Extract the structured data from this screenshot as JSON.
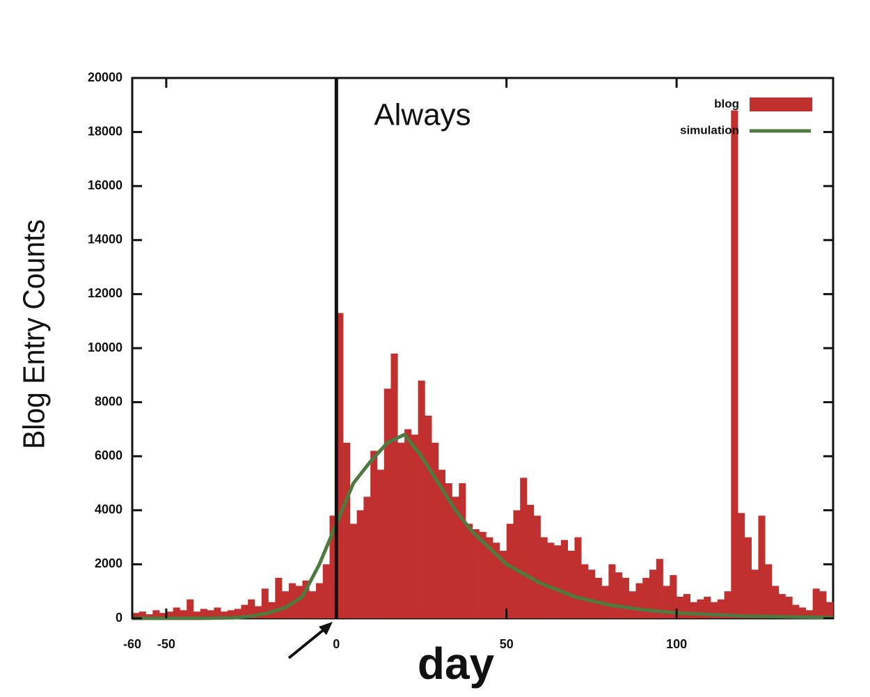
{
  "chart_data": {
    "type": "histogram",
    "title": "Always",
    "x_label": "day",
    "y_label": "Blog Entry Counts",
    "xlim": [
      -60,
      146
    ],
    "ylim": [
      0,
      20000
    ],
    "xticks": [
      -60,
      -50,
      0,
      50,
      100
    ],
    "yticks": [
      0,
      2000,
      4000,
      6000,
      8000,
      10000,
      12000,
      14000,
      16000,
      18000,
      20000
    ],
    "vline_x": 0,
    "legend": "top-right",
    "bins": [
      -60,
      -58,
      -56,
      -54,
      -52,
      -50,
      -48,
      -46,
      -44,
      -42,
      -40,
      -38,
      -36,
      -34,
      -32,
      -30,
      -28,
      -26,
      -24,
      -22,
      -20,
      -18,
      -16,
      -14,
      -12,
      -10,
      -8,
      -6,
      -4,
      -2,
      0,
      2,
      4,
      6,
      8,
      10,
      12,
      14,
      16,
      18,
      20,
      22,
      24,
      26,
      28,
      30,
      32,
      34,
      36,
      38,
      40,
      42,
      44,
      46,
      48,
      50,
      52,
      54,
      56,
      58,
      60,
      62,
      64,
      66,
      68,
      70,
      72,
      74,
      76,
      78,
      80,
      82,
      84,
      86,
      88,
      90,
      92,
      94,
      96,
      98,
      100,
      102,
      104,
      106,
      108,
      110,
      112,
      114,
      116,
      118,
      120,
      122,
      124,
      126,
      128,
      130,
      132,
      134,
      136,
      138,
      140,
      142,
      144,
      146
    ],
    "series": [
      {
        "name": "blog",
        "color": "#c0302f",
        "values": [
          200,
          250,
          150,
          300,
          200,
          250,
          400,
          300,
          700,
          250,
          350,
          300,
          400,
          250,
          300,
          350,
          500,
          700,
          450,
          1100,
          600,
          1500,
          1000,
          1300,
          1200,
          1400,
          1000,
          1300,
          2000,
          3800,
          11300,
          6500,
          3500,
          4000,
          4500,
          6200,
          5500,
          8500,
          9800,
          6500,
          7000,
          6800,
          8800,
          7500,
          6500,
          5500,
          5000,
          4500,
          5000,
          3500,
          3300,
          3200,
          3000,
          2800,
          2500,
          3500,
          4000,
          5200,
          4200,
          3800,
          3000,
          2800,
          2700,
          2900,
          2500,
          3000,
          2000,
          1800,
          1500,
          1200,
          2000,
          1700,
          1500,
          1000,
          1300,
          1500,
          1800,
          2200,
          1200,
          1600,
          800,
          900,
          600,
          700,
          800,
          600,
          700,
          1000,
          18800,
          3900,
          3000,
          1800,
          3800,
          2000,
          1200,
          900,
          800,
          500,
          400,
          300,
          1100,
          1000,
          600
        ]
      },
      {
        "name": "simulation",
        "color": "#4f7a3f",
        "x": [
          -60,
          -40,
          -30,
          -25,
          -20,
          -15,
          -10,
          -5,
          0,
          5,
          10,
          15,
          20,
          25,
          30,
          35,
          40,
          50,
          60,
          70,
          80,
          90,
          100,
          120,
          146
        ],
        "values": [
          0,
          0,
          20,
          80,
          200,
          400,
          800,
          2000,
          3500,
          5000,
          5800,
          6500,
          6800,
          6000,
          5000,
          4000,
          3200,
          2000,
          1300,
          800,
          500,
          320,
          200,
          80,
          30
        ]
      }
    ]
  }
}
